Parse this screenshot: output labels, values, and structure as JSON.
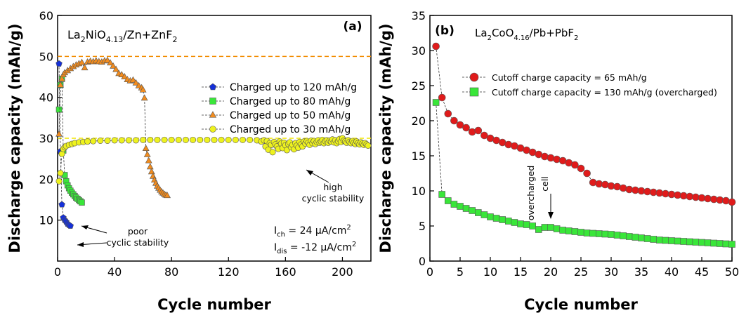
{
  "chart_data": [
    {
      "type": "scatter",
      "panel_label": "(a)",
      "system": {
        "pre": "La",
        "sub1": "2",
        "mid": "NiO",
        "sub2": "4.13",
        "post": "/Zn+ZnF",
        "sub3": "2"
      },
      "xlabel": "Cycle number",
      "ylabel": "Discharge capacity (mAh/g)",
      "xlim": [
        0,
        220
      ],
      "ylim": [
        0,
        60
      ],
      "xticks": [
        0,
        40,
        80,
        120,
        160,
        200
      ],
      "yticks": [
        10,
        20,
        30,
        40,
        50,
        60
      ],
      "legend_position": "right",
      "reference_lines": [
        {
          "y": 50,
          "color": "#f28c00"
        },
        {
          "y": 30,
          "color": "#f2e600"
        }
      ],
      "conditions": {
        "ich": {
          "base": "I",
          "sub": "ch",
          "text": " = 24 μA/cm",
          "sup": "2"
        },
        "idis": {
          "base": "I",
          "sub": "dis",
          "text": " = -12 μA/cm",
          "sup": "2"
        }
      },
      "annotations": {
        "poor": [
          "poor",
          "cyclic stability"
        ],
        "high": [
          "high",
          "cyclic stability"
        ]
      },
      "series": [
        {
          "name": "Charged up to 120 mAh/g",
          "marker": "pentagon",
          "color": "#1530d8",
          "x": [
            1,
            2,
            3,
            4,
            5,
            6,
            7,
            8,
            9
          ],
          "y": [
            48.2,
            26.8,
            13.8,
            10.6,
            10.0,
            9.6,
            9.1,
            8.8,
            8.6
          ]
        },
        {
          "name": "Charged up to 80 mAh/g",
          "marker": "square",
          "color": "#39e639",
          "x": [
            1,
            2,
            3,
            4,
            5,
            6,
            7,
            8,
            9,
            10,
            11,
            12,
            13,
            14,
            15,
            16,
            17
          ],
          "y": [
            37,
            43,
            44.5,
            27,
            21,
            19.5,
            18.5,
            17.8,
            17.2,
            16.7,
            16.3,
            15.9,
            15.5,
            15.2,
            14.9,
            14.6,
            14.3
          ]
        },
        {
          "name": "Charged up to 50 mAh/g",
          "marker": "triangle",
          "color": "#f28c1e",
          "x": [
            1,
            2,
            3,
            4,
            5,
            7,
            9,
            11,
            13,
            15,
            17,
            19,
            21,
            23,
            25,
            27,
            29,
            31,
            33,
            35,
            37,
            39,
            41,
            43,
            45,
            47,
            49,
            51,
            53,
            55,
            57,
            59,
            60,
            61,
            62,
            63,
            64,
            65,
            66,
            67,
            68,
            69,
            70,
            71,
            72,
            73,
            74,
            75,
            76,
            77
          ],
          "y": [
            31,
            43,
            44.5,
            45.5,
            46,
            46.5,
            47,
            47.5,
            47.9,
            48.2,
            48.5,
            47.2,
            48.6,
            48.8,
            48.7,
            48.9,
            48.7,
            48.6,
            48.9,
            49.0,
            48.4,
            47.6,
            46.8,
            45.8,
            45.5,
            45.0,
            44.3,
            44.0,
            44.2,
            43.5,
            42.8,
            42.3,
            41.8,
            39.8,
            27.5,
            26.0,
            24.5,
            23.0,
            21.8,
            20.7,
            19.8,
            19.0,
            18.3,
            17.8,
            17.3,
            16.9,
            16.6,
            16.3,
            16.1,
            16.0
          ]
        },
        {
          "name": "Charged up to 30 mAh/g",
          "marker": "circle",
          "color": "#eef21e",
          "x": [
            1,
            2,
            3,
            4,
            5,
            6,
            8,
            10,
            12,
            15,
            18,
            21,
            25,
            30,
            35,
            40,
            45,
            50,
            55,
            60,
            65,
            70,
            75,
            80,
            85,
            90,
            95,
            100,
            105,
            110,
            115,
            120,
            125,
            130,
            135,
            140,
            143,
            145,
            146,
            147,
            148,
            149,
            150,
            151,
            152,
            153,
            154,
            155,
            156,
            157,
            158,
            159,
            160,
            161,
            162,
            163,
            164,
            165,
            166,
            167,
            168,
            169,
            170,
            171,
            172,
            173,
            174,
            175,
            176,
            177,
            178,
            179,
            180,
            181,
            182,
            183,
            184,
            185,
            186,
            187,
            188,
            189,
            190,
            191,
            192,
            193,
            194,
            195,
            196,
            197,
            198,
            199,
            200,
            201,
            202,
            203,
            204,
            205,
            206,
            207,
            208,
            209,
            210,
            211,
            212,
            213,
            214,
            215,
            216,
            217,
            218
          ],
          "y": [
            19.5,
            21.5,
            26.2,
            27.4,
            27.8,
            28.1,
            28.4,
            28.6,
            28.8,
            29.0,
            29.1,
            29.2,
            29.3,
            29.4,
            29.4,
            29.5,
            29.5,
            29.5,
            29.5,
            29.6,
            29.6,
            29.6,
            29.6,
            29.6,
            29.6,
            29.6,
            29.6,
            29.6,
            29.6,
            29.6,
            29.6,
            29.6,
            29.6,
            29.6,
            29.6,
            29.5,
            29.2,
            29.5,
            28.0,
            29.3,
            27.2,
            28.8,
            28.4,
            26.6,
            29.1,
            28.5,
            28.0,
            27.4,
            29.2,
            28.7,
            27.6,
            28.9,
            28.3,
            27.1,
            28.6,
            29.0,
            27.8,
            28.4,
            27.3,
            28.8,
            28.2,
            27.7,
            29.1,
            28.5,
            28.0,
            29.2,
            28.7,
            29.3,
            28.9,
            28.4,
            29.4,
            28.8,
            29.3,
            28.6,
            29.1,
            29.5,
            28.9,
            29.2,
            29.6,
            28.8,
            29.3,
            29.5,
            28.9,
            29.4,
            29.2,
            29.7,
            29.0,
            29.5,
            28.8,
            29.3,
            29.8,
            29.1,
            30.0,
            29.4,
            29.2,
            28.9,
            29.5,
            29.1,
            28.8,
            29.3,
            28.9,
            28.6,
            29.2,
            28.8,
            28.5,
            29.0,
            28.7,
            28.4,
            28.8,
            28.5,
            28.2
          ]
        }
      ]
    },
    {
      "type": "scatter",
      "panel_label": "(b)",
      "system": {
        "pre": "La",
        "sub1": "2",
        "mid": "CoO",
        "sub2": "4.16",
        "post": "/Pb+PbF",
        "sub3": "2"
      },
      "xlabel": "Cycle number",
      "ylabel": "Discharge capacity (mAh/g)",
      "xlim": [
        0,
        50
      ],
      "ylim": [
        0,
        35
      ],
      "xticks": [
        0,
        5,
        10,
        15,
        20,
        25,
        30,
        35,
        40,
        45,
        50
      ],
      "yticks": [
        0,
        5,
        10,
        15,
        20,
        25,
        30,
        35
      ],
      "legend_position": "upper-left",
      "annotations": {
        "overcharged": [
          "overcharged",
          "cell"
        ]
      },
      "series": [
        {
          "name": "Cutoff charge capacity = 65 mAh/g",
          "marker": "circle",
          "color": "#e01b1b",
          "x": [
            1,
            2,
            3,
            4,
            5,
            6,
            7,
            8,
            9,
            10,
            11,
            12,
            13,
            14,
            15,
            16,
            17,
            18,
            19,
            20,
            21,
            22,
            23,
            24,
            25,
            26,
            27,
            28,
            29,
            30,
            31,
            32,
            33,
            34,
            35,
            36,
            37,
            38,
            39,
            40,
            41,
            42,
            43,
            44,
            45,
            46,
            47,
            48,
            49,
            50
          ],
          "y": [
            30.6,
            23.3,
            21.0,
            20.0,
            19.4,
            19.0,
            18.4,
            18.6,
            17.9,
            17.5,
            17.2,
            16.9,
            16.6,
            16.4,
            16.1,
            15.8,
            15.5,
            15.2,
            14.9,
            14.7,
            14.5,
            14.3,
            14.0,
            13.7,
            13.2,
            12.5,
            11.2,
            11.0,
            10.9,
            10.7,
            10.6,
            10.4,
            10.2,
            10.1,
            10.0,
            9.9,
            9.8,
            9.7,
            9.6,
            9.5,
            9.4,
            9.3,
            9.2,
            9.1,
            9.0,
            8.9,
            8.8,
            8.7,
            8.6,
            8.4
          ]
        },
        {
          "name": "Cutoff charge capacity = 130 mAh/g (overcharged)",
          "marker": "square",
          "color": "#39e639",
          "x": [
            1,
            2,
            3,
            4,
            5,
            6,
            7,
            8,
            9,
            10,
            11,
            12,
            13,
            14,
            15,
            16,
            17,
            18,
            19,
            20,
            21,
            22,
            23,
            24,
            25,
            26,
            27,
            28,
            29,
            30,
            31,
            32,
            33,
            34,
            35,
            36,
            37,
            38,
            39,
            40,
            41,
            42,
            43,
            44,
            45,
            46,
            47,
            48,
            49,
            50
          ],
          "y": [
            22.6,
            9.5,
            8.6,
            8.1,
            7.8,
            7.5,
            7.2,
            6.9,
            6.6,
            6.3,
            6.1,
            5.9,
            5.7,
            5.5,
            5.3,
            5.2,
            5.0,
            4.5,
            4.8,
            4.8,
            4.6,
            4.4,
            4.3,
            4.2,
            4.1,
            4.0,
            3.95,
            3.9,
            3.85,
            3.8,
            3.7,
            3.6,
            3.5,
            3.4,
            3.3,
            3.2,
            3.1,
            3.0,
            2.95,
            2.9,
            2.85,
            2.8,
            2.75,
            2.7,
            2.65,
            2.6,
            2.55,
            2.5,
            2.45,
            2.4
          ]
        }
      ]
    }
  ]
}
